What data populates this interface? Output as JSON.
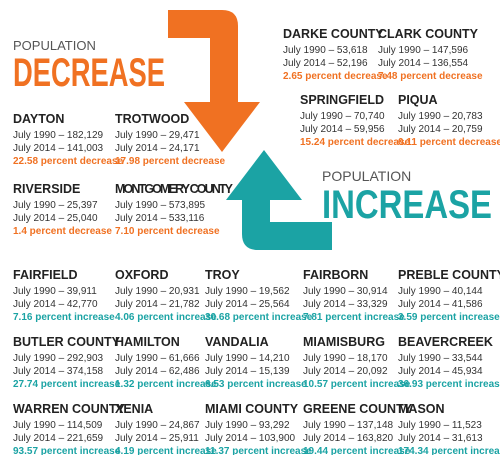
{
  "header": {
    "decrease_kicker": "POPULATION",
    "decrease_title": "DECREASE",
    "increase_kicker": "POPULATION",
    "increase_title": "INCREASE"
  },
  "decrease": {
    "cities": [
      {
        "name": "DARKE COUNTY",
        "line1": "July 1990 – 53,618",
        "line2": "July 2014 – 52,196",
        "change": "2.65 percent decrease"
      },
      {
        "name": "CLARK COUNTY",
        "line1": "July 1990 – 147,596",
        "line2": "July 2014 – 136,554",
        "change": "7.48 percent decrease"
      },
      {
        "name": "SPRINGFIELD",
        "line1": "July 1990 – 70,740",
        "line2": "July 2014 – 59,956",
        "change": "15.24 percent decrease"
      },
      {
        "name": "PIQUA",
        "line1": "July 1990 – 20,783",
        "line2": "July 2014 – 20,759",
        "change": "0.11 percent decrease"
      },
      {
        "name": "DAYTON",
        "line1": "July 1990 – 182,129",
        "line2": "July 2014 – 141,003",
        "change": "22.58 percent decrease"
      },
      {
        "name": "TROTWOOD",
        "line1": "July 1990 – 29,471",
        "line2": "July 2014 – 24,171",
        "change": "17.98 percent decrease"
      },
      {
        "name": "RIVERSIDE",
        "line1": "July 1990 – 25,397",
        "line2": "July 2014 – 25,040",
        "change": "1.4 percent decrease"
      },
      {
        "name": "MONTGOMERY COUNTY",
        "line1": "July 1990 – 573,895",
        "line2": "July 2014 – 533,116",
        "change": "7.10 percent decrease"
      }
    ]
  },
  "increase": {
    "cities": [
      {
        "name": "FAIRFIELD",
        "line1": "July 1990 – 39,911",
        "line2": "July 2014 – 42,770",
        "change": "7.16 percent increase"
      },
      {
        "name": "OXFORD",
        "line1": "July 1990 – 20,931",
        "line2": "July 2014 – 21,782",
        "change": "4.06 percent increase"
      },
      {
        "name": "TROY",
        "line1": "July 1990 – 19,562",
        "line2": "July 2014 – 25,564",
        "change": "30.68 percent increase"
      },
      {
        "name": "FAIRBORN",
        "line1": "July 1990 – 30,914",
        "line2": "July 2014 – 33,329",
        "change": "7.81 percent increase"
      },
      {
        "name": "PREBLE COUNTY",
        "line1": "July 1990 – 40,144",
        "line2": "July 2014 – 41,586",
        "change": "3.59 percent increase"
      },
      {
        "name": "BUTLER COUNTY",
        "line1": "July 1990 – 292,903",
        "line2": "July 2014 – 374,158",
        "change": "27.74 percent increase"
      },
      {
        "name": "HAMILTON",
        "line1": "July 1990 – 61,666",
        "line2": "July 2014 – 62,486",
        "change": "1.32 percent increase"
      },
      {
        "name": "VANDALIA",
        "line1": "July 1990 – 14,210",
        "line2": "July 2014 – 15,139",
        "change": "6.53 percent increase"
      },
      {
        "name": "MIAMISBURG",
        "line1": "July 1990 – 18,170",
        "line2": "July 2014 – 20,092",
        "change": "10.57 percent increase"
      },
      {
        "name": "BEAVERCREEK",
        "line1": "July 1990 – 33,544",
        "line2": "July 2014 – 45,934",
        "change": "36.93 percent increase"
      },
      {
        "name": "WARREN COUNTY",
        "line1": "July 1990 – 114,509",
        "line2": "July 2014 – 221,659",
        "change": "93.57 percent increase"
      },
      {
        "name": "XENIA",
        "line1": "July 1990 – 24,867",
        "line2": "July 2014 – 25,911",
        "change": "4.19 percent increase"
      },
      {
        "name": "MIAMI COUNTY",
        "line1": "July 1990 – 93,292",
        "line2": "July 2014 – 103,900",
        "change": "11.37 percent increase"
      },
      {
        "name": "GREENE COUNTY",
        "line1": "July 1990 – 137,148",
        "line2": "July 2014 – 163,820",
        "change": "19.44 percent increase"
      },
      {
        "name": "MASON",
        "line1": "July 1990 – 11,523",
        "line2": "July 2014 – 31,613",
        "change": "174.34 percent increase"
      }
    ]
  }
}
